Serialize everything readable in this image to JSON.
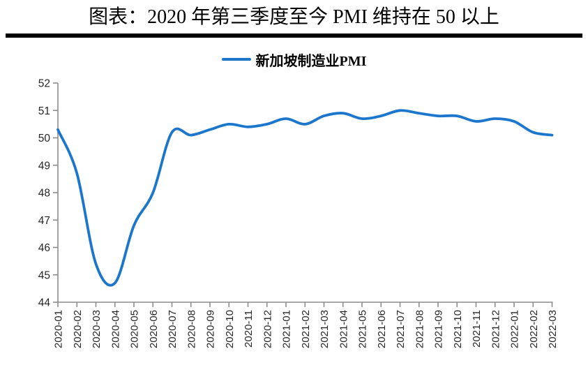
{
  "header": {
    "title": "图表：2020 年第三季度至今 PMI 维持在 50 以上"
  },
  "legend": {
    "label": "新加坡制造业PMI"
  },
  "colors": {
    "line": "#1B76CC",
    "axis": "#8C8C8C",
    "tick_label": "#262626",
    "rule": "#000000",
    "background": "#FFFFFF"
  },
  "chart_data": {
    "type": "line",
    "title": "图表：2020 年第三季度至今 PMI 维持在 50 以上",
    "smooth": true,
    "grid": false,
    "legend_position": "top-center",
    "xlabel": "",
    "ylabel": "",
    "ylim": [
      44,
      52
    ],
    "ytick_step": 1,
    "categories": [
      "2020-01",
      "2020-02",
      "2020-03",
      "2020-04",
      "2020-05",
      "2020-06",
      "2020-07",
      "2020-08",
      "2020-09",
      "2020-10",
      "2020-11",
      "2020-12",
      "2021-01",
      "2021-02",
      "2021-03",
      "2021-04",
      "2021-05",
      "2021-06",
      "2021-07",
      "2021-08",
      "2021-09",
      "2021-10",
      "2021-11",
      "2021-12",
      "2022-01",
      "2022-02",
      "2022-03"
    ],
    "series": [
      {
        "name": "新加坡制造业PMI",
        "color": "#1B76CC",
        "values": [
          50.3,
          48.7,
          45.4,
          44.7,
          46.8,
          48.0,
          50.2,
          50.1,
          50.3,
          50.5,
          50.4,
          50.5,
          50.7,
          50.5,
          50.8,
          50.9,
          50.7,
          50.8,
          51.0,
          50.9,
          50.8,
          50.8,
          50.6,
          50.7,
          50.6,
          50.2,
          50.1
        ]
      }
    ]
  }
}
